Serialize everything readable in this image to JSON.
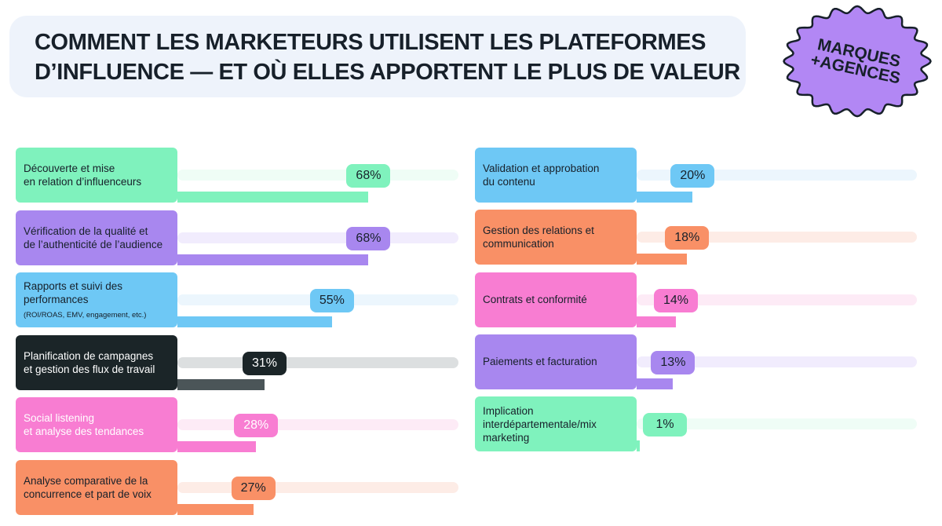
{
  "title_lines": [
    "COMMENT LES MARKETEURS UTILISENT LES PLATEFORMES",
    "D’INFLUENCE — ET OÙ ELLES APPORTENT LE PLUS DE VALEUR"
  ],
  "badge": {
    "line1": "MARQUES",
    "line2": "+AGENCES",
    "color": "#b287f4",
    "outline": "#17202a"
  },
  "chart_data": {
    "type": "bar",
    "orientation": "horizontal",
    "unit": "%",
    "xlim": [
      0,
      100
    ],
    "grid": false,
    "columns": [
      [
        {
          "label": "Découverte et mise\nen relation d’influenceurs",
          "value": 68,
          "color": "#7ff2bd",
          "track": "#effdf6",
          "text_color": "#17202a"
        },
        {
          "label": "Vérification de la qualité et\nde l’authenticité de l’audience",
          "value": 68,
          "color": "#a887ef",
          "track": "#f1ecfd",
          "text_color": "#17202a"
        },
        {
          "label": "Rapports et suivi des\nperformances",
          "note": "(ROI/ROAS, EMV, engagement, etc.)",
          "value": 55,
          "color": "#6ec8f5",
          "track": "#ecf6fd",
          "text_color": "#17202a"
        },
        {
          "label": "Planification de campagnes\net gestion des flux de travail",
          "value": 31,
          "color": "#1b2528",
          "fill_color": "#4b5558",
          "track": "#dcdfe0",
          "text_color": "#ffffff"
        },
        {
          "label": "Social listening\net analyse des tendances",
          "value": 28,
          "color": "#f87dd2",
          "track": "#fdebf6",
          "text_color": "#ffffff"
        },
        {
          "label": "Analyse comparative de la\nconcurrence et part de voix",
          "value": 27,
          "color": "#f99066",
          "track": "#fdece6",
          "text_color": "#17202a"
        }
      ],
      [
        {
          "label": "Validation et approbation\ndu contenu",
          "value": 20,
          "color": "#6ec8f5",
          "track": "#ecf6fd",
          "text_color": "#17202a"
        },
        {
          "label": "Gestion des relations et\ncommunication",
          "value": 18,
          "color": "#f99066",
          "track": "#fdece6",
          "text_color": "#17202a"
        },
        {
          "label": "Contrats et conformité",
          "value": 14,
          "color": "#f87dd2",
          "track": "#fdebf6",
          "text_color": "#17202a"
        },
        {
          "label": "Paiements et facturation",
          "value": 13,
          "color": "#a887ef",
          "track": "#f1ecfd",
          "text_color": "#17202a"
        },
        {
          "label": "Implication\ninterdépartementale/mix\nmarketing",
          "value": 1,
          "color": "#7ff2bd",
          "track": "#effdf6",
          "text_color": "#17202a"
        }
      ]
    ]
  }
}
